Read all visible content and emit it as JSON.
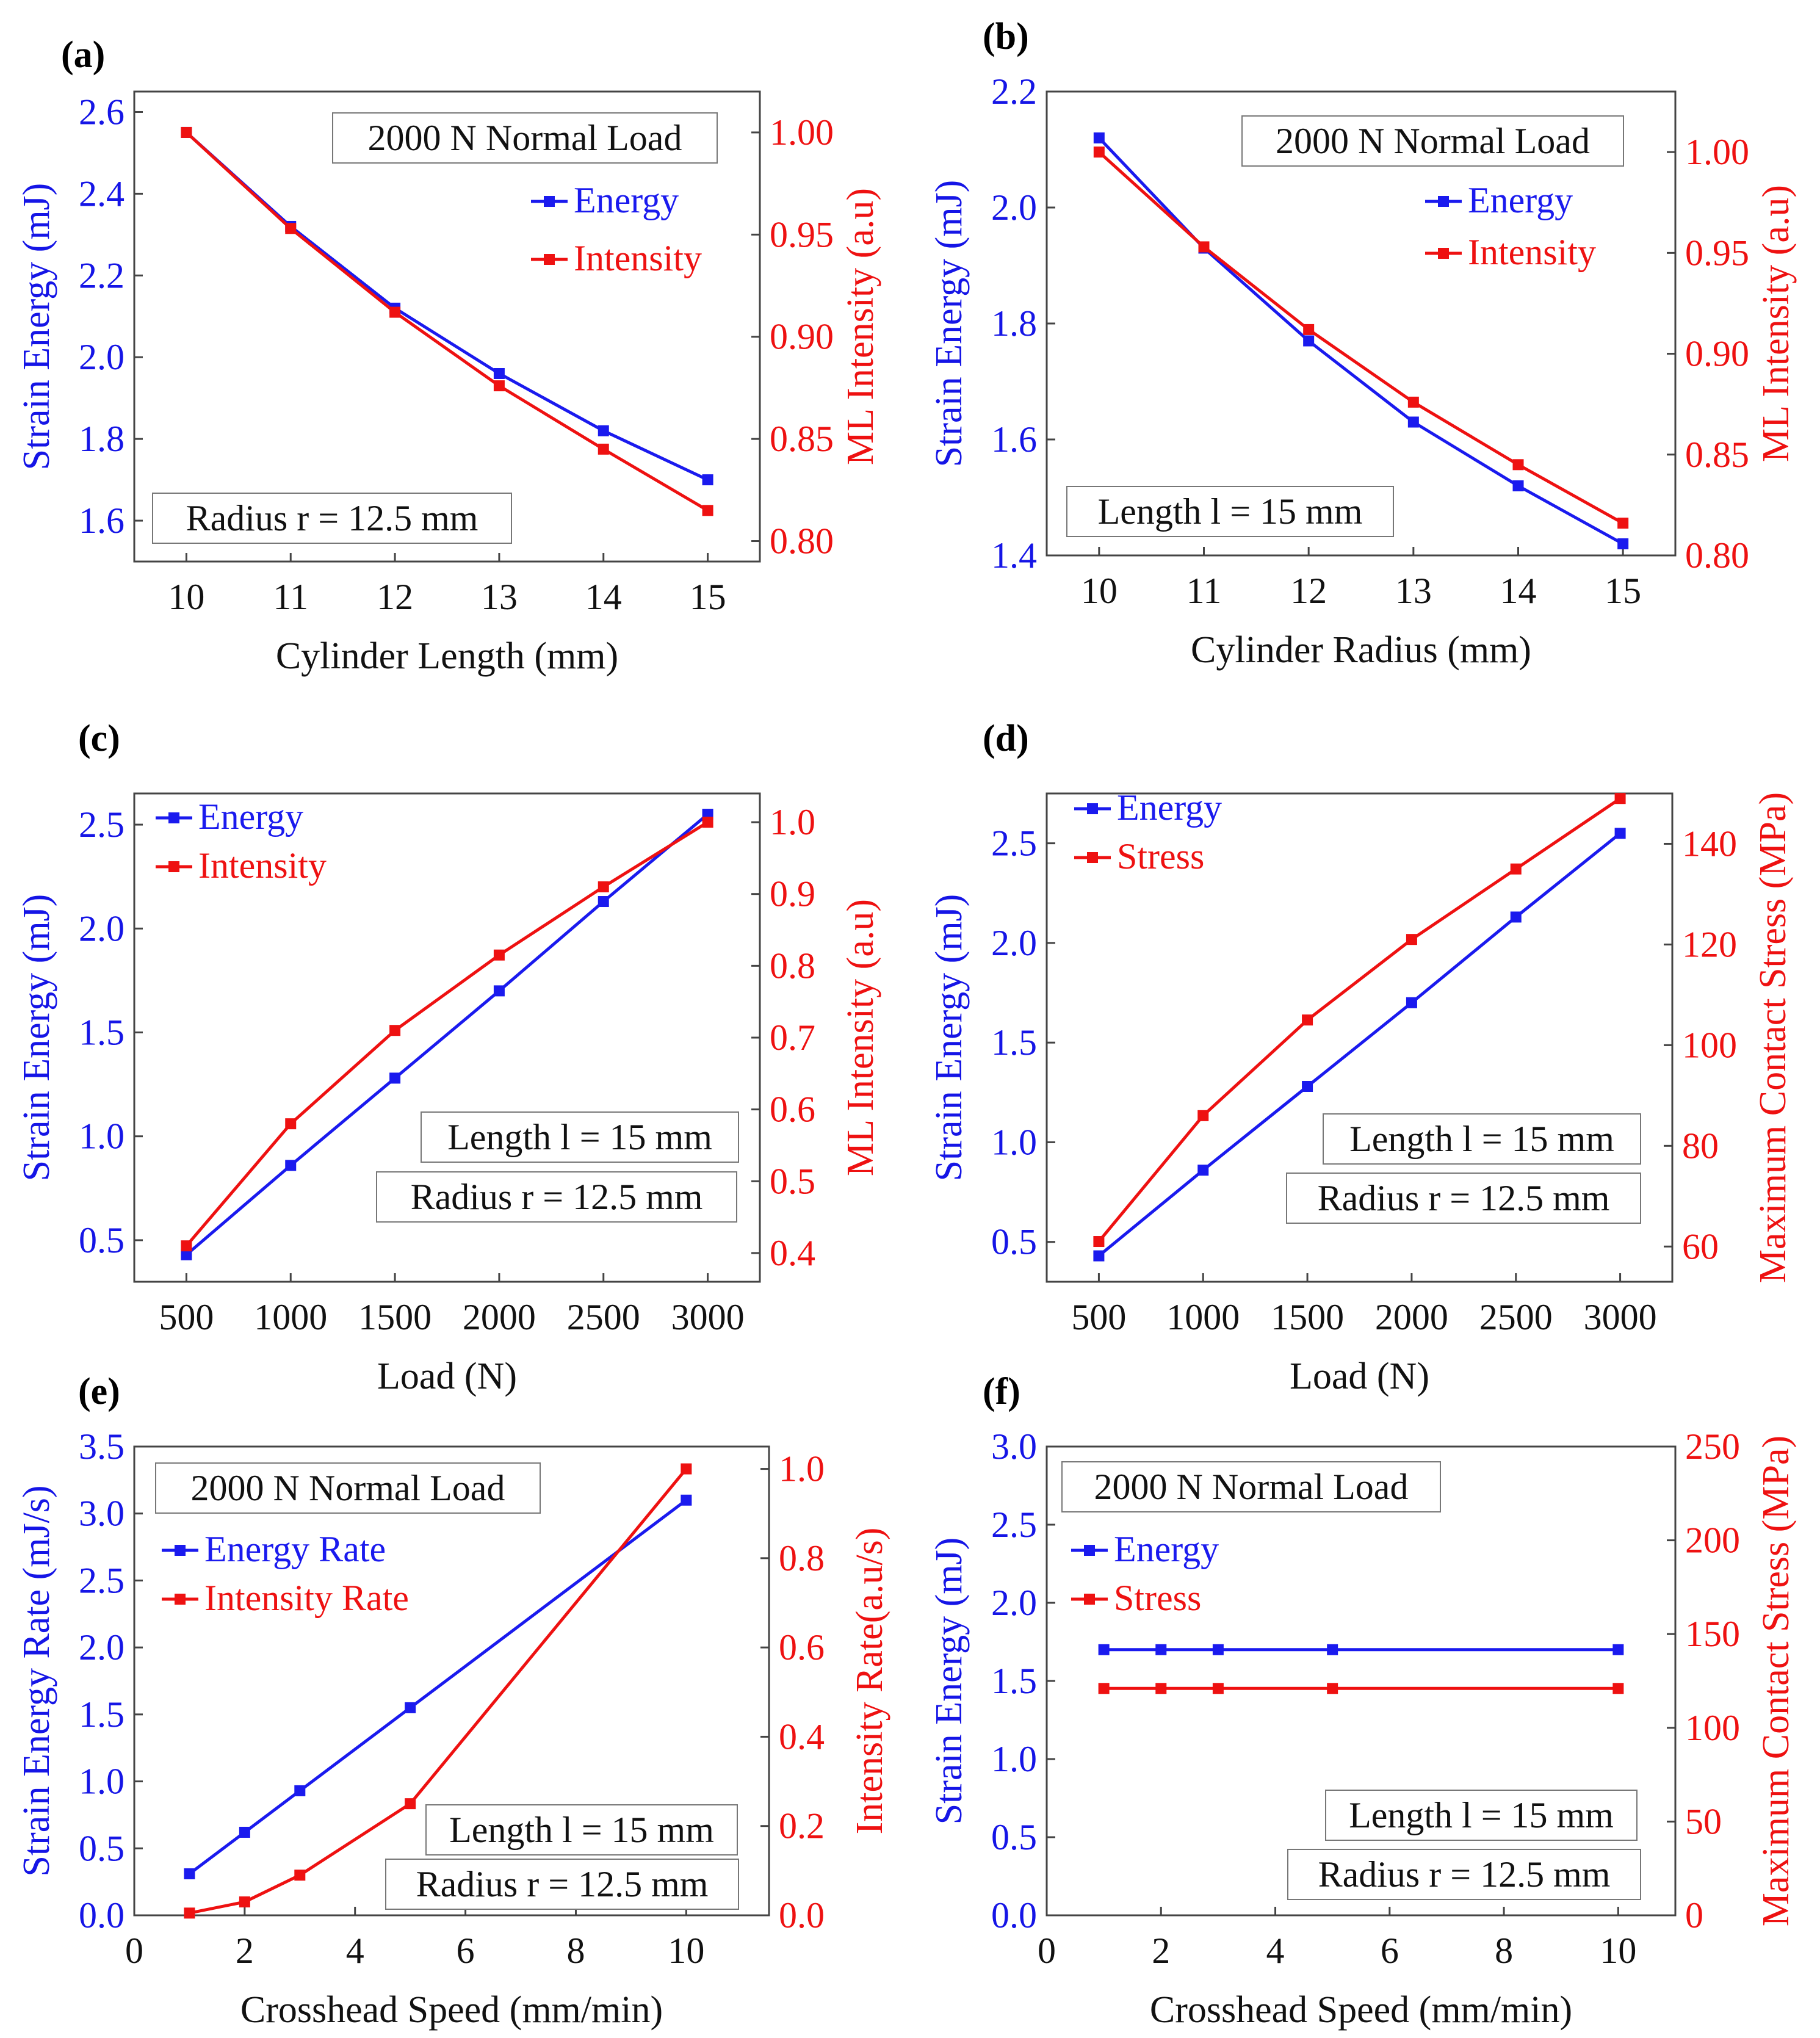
{
  "colors": {
    "energy": "#1a1aee",
    "intensity": "#ee1111",
    "axis": "#444444"
  },
  "chart_data": [
    {
      "panel": "(a)",
      "type": "line",
      "xlabel": "Cylinder  Length (mm)",
      "ylabel_left": "Strain Energy (mJ)",
      "ylabel_right": "ML Intensity (a.u)",
      "x": [
        10,
        11,
        12,
        13,
        14,
        15
      ],
      "xlim": [
        9.5,
        15.5
      ],
      "xticks": [
        "10",
        "11",
        "12",
        "13",
        "14",
        "15"
      ],
      "ylim_left": [
        1.5,
        2.65
      ],
      "yticks_left": [
        "1.6",
        "1.8",
        "2.0",
        "2.2",
        "2.4",
        "2.6"
      ],
      "ylim_right": [
        0.79,
        1.02
      ],
      "yticks_right": [
        "0.80",
        "0.85",
        "0.90",
        "0.95",
        "1.00"
      ],
      "series": [
        {
          "name": "Energy",
          "axis": "left",
          "values": [
            2.55,
            2.32,
            2.12,
            1.96,
            1.82,
            1.7
          ]
        },
        {
          "name": "Intensity",
          "axis": "right",
          "values": [
            1.0,
            0.953,
            0.912,
            0.876,
            0.845,
            0.815
          ]
        }
      ],
      "annotations": [
        "2000 N Normal Load",
        "Radius r = 12.5 mm"
      ]
    },
    {
      "panel": "(b)",
      "type": "line",
      "xlabel": "Cylinder Radius (mm)",
      "ylabel_left": "Strain Energy (mJ)",
      "ylabel_right": "ML Intensity (a.u)",
      "x": [
        10,
        11,
        12,
        13,
        14,
        15
      ],
      "xlim": [
        9.5,
        15.5
      ],
      "xticks": [
        "10",
        "11",
        "12",
        "13",
        "14",
        "15"
      ],
      "ylim_left": [
        1.4,
        2.2
      ],
      "yticks_left": [
        "1.4",
        "1.6",
        "1.8",
        "2.0",
        "2.2"
      ],
      "ylim_right": [
        0.8,
        1.03
      ],
      "yticks_right": [
        "0.80",
        "0.85",
        "0.90",
        "0.95",
        "1.00"
      ],
      "series": [
        {
          "name": "Energy",
          "axis": "left",
          "values": [
            2.12,
            1.93,
            1.77,
            1.63,
            1.52,
            1.42
          ]
        },
        {
          "name": "Intensity",
          "axis": "right",
          "values": [
            1.0,
            0.953,
            0.912,
            0.876,
            0.845,
            0.816
          ]
        }
      ],
      "annotations": [
        "2000 N Normal Load",
        "Length l = 15 mm"
      ]
    },
    {
      "panel": "(c)",
      "type": "line",
      "xlabel": "Load (N)",
      "ylabel_left": "Strain Energy (mJ)",
      "ylabel_right": "ML Intensity (a.u)",
      "x": [
        500,
        1000,
        1500,
        2000,
        2500,
        3000
      ],
      "xlim": [
        250,
        3250
      ],
      "xticks": [
        "500",
        "1000",
        "1500",
        "2000",
        "2500",
        "3000"
      ],
      "ylim_left": [
        0.3,
        2.65
      ],
      "yticks_left": [
        "0.5",
        "1.0",
        "1.5",
        "2.0",
        "2.5"
      ],
      "ylim_right": [
        0.36,
        1.04
      ],
      "yticks_right": [
        "0.4",
        "0.5",
        "0.6",
        "0.7",
        "0.8",
        "0.9",
        "1.0"
      ],
      "series": [
        {
          "name": "Energy",
          "axis": "left",
          "values": [
            0.43,
            0.86,
            1.28,
            1.7,
            2.13,
            2.55
          ]
        },
        {
          "name": "Intensity",
          "axis": "right",
          "values": [
            0.41,
            0.58,
            0.71,
            0.815,
            0.91,
            1.0
          ]
        }
      ],
      "annotations": [
        "Length l = 15 mm",
        "Radius r = 12.5 mm"
      ]
    },
    {
      "panel": "(d)",
      "type": "line",
      "xlabel": "Load (N)",
      "ylabel_left": "Strain Energy (mJ)",
      "ylabel_right": "Maximum Contact Stress (MPa)",
      "x": [
        500,
        1000,
        1500,
        2000,
        2500,
        3000
      ],
      "xlim": [
        250,
        3250
      ],
      "xticks": [
        "500",
        "1000",
        "1500",
        "2000",
        "2500",
        "3000"
      ],
      "ylim_left": [
        0.3,
        2.75
      ],
      "yticks_left": [
        "0.5",
        "1.0",
        "1.5",
        "2.0",
        "2.5"
      ],
      "ylim_right": [
        53,
        150
      ],
      "yticks_right": [
        "60",
        "80",
        "100",
        "120",
        "140"
      ],
      "series": [
        {
          "name": "Energy",
          "axis": "left",
          "values": [
            0.43,
            0.86,
            1.28,
            1.7,
            2.13,
            2.55
          ]
        },
        {
          "name": "Stress",
          "axis": "right",
          "values": [
            61,
            86,
            105,
            121,
            135,
            149
          ]
        }
      ],
      "annotations": [
        "Length l = 15 mm",
        "Radius r = 12.5 mm"
      ]
    },
    {
      "panel": "(e)",
      "type": "line",
      "xlabel": "Crosshead Speed (mm/min)",
      "ylabel_left": "Strain Energy Rate (mJ/s)",
      "ylabel_right": "Intensity Rate(a.u/s)",
      "x": [
        1,
        2,
        3,
        5,
        10
      ],
      "xlim": [
        0,
        11.5
      ],
      "xticks": [
        "0",
        "2",
        "4",
        "6",
        "8",
        "10"
      ],
      "xtick_values": [
        0,
        2,
        4,
        6,
        8,
        10
      ],
      "ylim_left": [
        0,
        3.5
      ],
      "yticks_left": [
        "0.0",
        "0.5",
        "1.0",
        "1.5",
        "2.0",
        "2.5",
        "3.0",
        "3.5"
      ],
      "ylim_right": [
        0,
        1.05
      ],
      "yticks_right": [
        "0.0",
        "0.2",
        "0.4",
        "0.6",
        "0.8",
        "1.0"
      ],
      "series": [
        {
          "name": "Energy Rate",
          "axis": "left",
          "values": [
            0.31,
            0.62,
            0.93,
            1.55,
            3.1
          ]
        },
        {
          "name": "Intensity Rate",
          "axis": "right",
          "values": [
            0.005,
            0.03,
            0.09,
            0.25,
            1.0
          ]
        }
      ],
      "annotations": [
        "2000 N Normal Load",
        "Length l = 15 mm",
        "Radius r = 12.5 mm"
      ]
    },
    {
      "panel": "(f)",
      "type": "line",
      "xlabel": "Crosshead Speed  (mm/min)",
      "ylabel_left": "Strain Energy  (mJ)",
      "ylabel_right": "Maximum Contact Stress (MPa)",
      "x": [
        1,
        2,
        3,
        5,
        10
      ],
      "xlim": [
        0,
        11
      ],
      "xticks": [
        "0",
        "2",
        "4",
        "6",
        "8",
        "10"
      ],
      "xtick_values": [
        0,
        2,
        4,
        6,
        8,
        10
      ],
      "ylim_left": [
        0,
        3.0
      ],
      "yticks_left": [
        "0.0",
        "0.5",
        "1.0",
        "1.5",
        "2.0",
        "2.5",
        "3.0"
      ],
      "ylim_right": [
        0,
        250
      ],
      "yticks_right": [
        "0",
        "50",
        "100",
        "150",
        "200",
        "250"
      ],
      "series": [
        {
          "name": "Energy",
          "axis": "left",
          "values": [
            1.7,
            1.7,
            1.7,
            1.7,
            1.7
          ]
        },
        {
          "name": "Stress",
          "axis": "right",
          "values": [
            121,
            121,
            121,
            121,
            121
          ]
        }
      ],
      "annotations": [
        "2000 N Normal Load",
        "Length l = 15 mm",
        "Radius r = 12.5 mm"
      ]
    }
  ]
}
